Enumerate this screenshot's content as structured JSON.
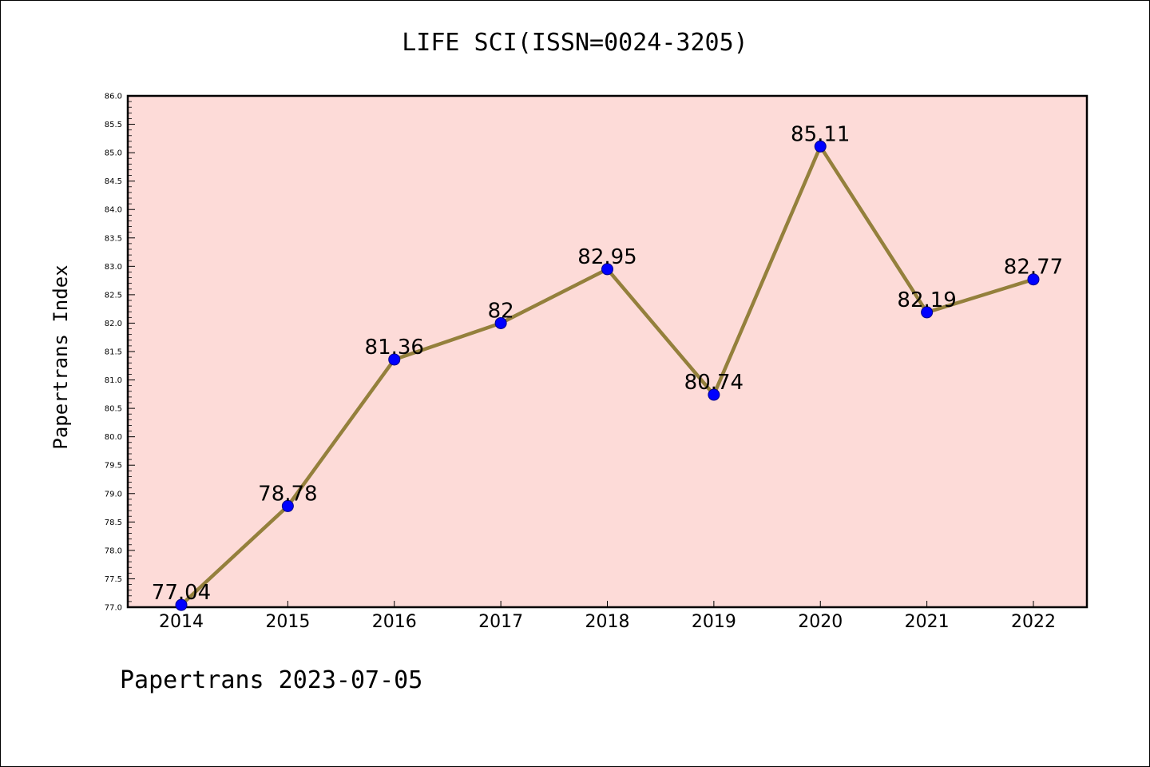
{
  "page": {
    "title": "LIFE SCI(ISSN=0024-3205)",
    "footer": "Papertrans 2023-07-05"
  },
  "colors": {
    "plot_background": "#fddbd8",
    "line": "#94803c",
    "marker": "#0000ff",
    "marker_edge": "#00008b"
  },
  "chart_data": {
    "type": "line",
    "title": "LIFE SCI(ISSN=0024-3205)",
    "xlabel": "",
    "ylabel": "Papertrans Index",
    "categories": [
      "2014",
      "2015",
      "2016",
      "2017",
      "2018",
      "2019",
      "2020",
      "2021",
      "2022"
    ],
    "series": [
      {
        "values": [
          77.04,
          78.78,
          81.36,
          82,
          82.95,
          80.74,
          85.11,
          82.19,
          82.77
        ],
        "labels": [
          "77.04",
          "78.78",
          "81.36",
          "82",
          "82.95",
          "80.74",
          "85.11",
          "82.19",
          "82.77"
        ]
      }
    ],
    "ylim": [
      77.0,
      86.0
    ],
    "yticks": [
      "77.0",
      "77.5",
      "78.0",
      "78.5",
      "79.0",
      "79.5",
      "80.0",
      "80.5",
      "81.0",
      "81.5",
      "82.0",
      "82.5",
      "83.0",
      "83.5",
      "84.0",
      "84.5",
      "85.0",
      "85.5",
      "86.0"
    ],
    "grid": false,
    "legend": "none"
  }
}
